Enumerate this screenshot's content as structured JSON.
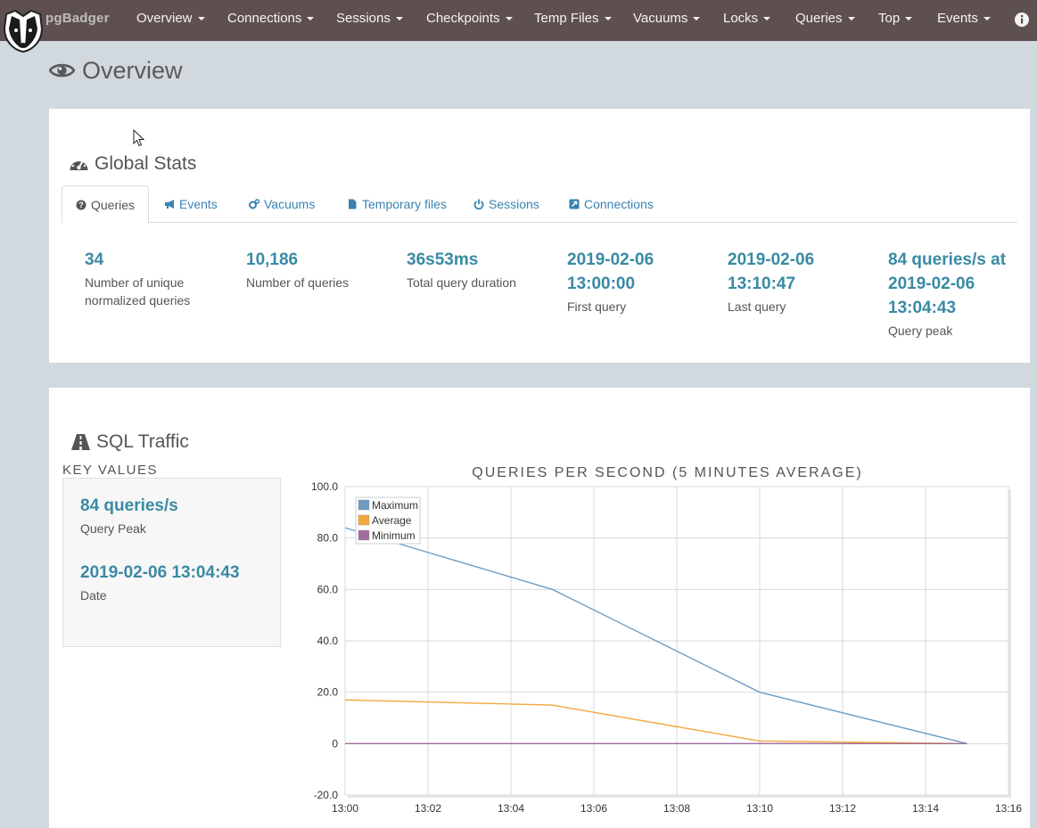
{
  "navbar": {
    "brand": "pgBadger",
    "items": [
      {
        "label": "Overview"
      },
      {
        "label": "Connections"
      },
      {
        "label": "Sessions"
      },
      {
        "label": "Checkpoints"
      },
      {
        "label": "Temp Files"
      },
      {
        "label": "Vacuums"
      },
      {
        "label": "Locks"
      },
      {
        "label": "Queries"
      },
      {
        "label": "Top"
      },
      {
        "label": "Events"
      }
    ],
    "info_icon": "info-icon",
    "logo_icon": "badger-logo-icon"
  },
  "page": {
    "title": "Overview",
    "title_icon": "eye-icon"
  },
  "global_stats": {
    "title": "Global Stats",
    "icon": "dashboard-icon",
    "tabs": [
      {
        "label": "Queries",
        "icon": "question-circle-icon",
        "active": true
      },
      {
        "label": "Events",
        "icon": "bullhorn-icon"
      },
      {
        "label": "Vacuums",
        "icon": "cogs-icon"
      },
      {
        "label": "Temporary files",
        "icon": "file-icon"
      },
      {
        "label": "Sessions",
        "icon": "power-icon"
      },
      {
        "label": "Connections",
        "icon": "external-link-icon"
      }
    ],
    "stats": [
      {
        "value": "34",
        "label": "Number of unique normalized queries"
      },
      {
        "value": "10,186",
        "label": "Number of queries"
      },
      {
        "value": "36s53ms",
        "label": "Total query duration"
      },
      {
        "value": "2019-02-06 13:00:00",
        "label": "First query"
      },
      {
        "value": "2019-02-06 13:10:47",
        "label": "Last query"
      },
      {
        "value": "84 queries/s at 2019-02-06 13:04:43",
        "label": "Query peak"
      }
    ]
  },
  "sql_traffic": {
    "title": "SQL Traffic",
    "icon": "road-icon",
    "key_values_title": "KEY VALUES",
    "key_values": [
      {
        "value": "84 queries/s",
        "label": "Query Peak"
      },
      {
        "value": "2019-02-06 13:04:43",
        "label": "Date"
      }
    ]
  },
  "colors": {
    "navbar": "#5f5050",
    "accent": "#3a8aa4",
    "link": "#3a83b1",
    "maximum": "#6e9cc3",
    "average": "#f3a73b",
    "minimum": "#a16b9f"
  },
  "chart_data": {
    "type": "line",
    "title": "QUERIES PER SECOND (5 MINUTES AVERAGE)",
    "x_ticks": [
      "13:00",
      "13:02",
      "13:04",
      "13:06",
      "13:08",
      "13:10",
      "13:12",
      "13:14",
      "13:16"
    ],
    "y_ticks": [
      "100.0",
      "80.0",
      "60.0",
      "40.0",
      "20.0",
      "0",
      "-20.0"
    ],
    "xlim": [
      "13:00",
      "13:16"
    ],
    "ylim": [
      -20,
      100
    ],
    "grid": true,
    "legend_position": "top-left",
    "x": [
      "13:00",
      "13:05",
      "13:10",
      "13:15"
    ],
    "series": [
      {
        "name": "Maximum",
        "color": "#6e9cc3",
        "values": [
          84,
          60,
          20,
          0
        ]
      },
      {
        "name": "Average",
        "color": "#f3a73b",
        "values": [
          17,
          15,
          1,
          0
        ]
      },
      {
        "name": "Minimum",
        "color": "#a16b9f",
        "values": [
          0,
          0,
          0,
          0
        ]
      }
    ]
  }
}
